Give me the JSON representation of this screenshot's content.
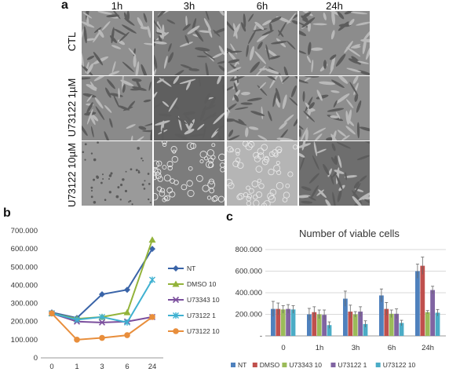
{
  "panel_a": {
    "letter": "a",
    "columns": [
      "1h",
      "3h",
      "6h",
      "24h"
    ],
    "rows": [
      "CTL",
      "U73122 1µM",
      "U73122 10µM"
    ]
  },
  "panel_b": {
    "letter": "b"
  },
  "panel_c": {
    "letter": "c"
  },
  "chart_data": [
    {
      "type": "line",
      "title": "",
      "xlabel": "",
      "ylabel": "",
      "x": [
        "0",
        "1",
        "3",
        "6",
        "24"
      ],
      "y_ticks": [
        "0",
        "100.000",
        "200.000",
        "300.000",
        "400.000",
        "500.000",
        "600.000",
        "700.000"
      ],
      "ylim": [
        0,
        700000
      ],
      "grid": false,
      "legend_position": "right",
      "series": [
        {
          "name": "NT",
          "color": "#3a64a8",
          "marker": "diamond",
          "values": [
            250000,
            220000,
            350000,
            375000,
            600000
          ]
        },
        {
          "name": "DMSO 10",
          "color": "#93b33b",
          "marker": "triangle",
          "values": [
            245000,
            215000,
            225000,
            250000,
            650000
          ]
        },
        {
          "name": "U73343 10",
          "color": "#7b4f9d",
          "marker": "x",
          "values": [
            245000,
            200000,
            195000,
            200000,
            225000
          ]
        },
        {
          "name": "U73122 1",
          "color": "#3fb1d1",
          "marker": "star",
          "values": [
            245000,
            210000,
            225000,
            195000,
            430000
          ]
        },
        {
          "name": "U73122 10",
          "color": "#e88e3c",
          "marker": "circle",
          "values": [
            245000,
            100000,
            110000,
            125000,
            225000
          ]
        }
      ]
    },
    {
      "type": "bar",
      "title": "Number of viable cells",
      "xlabel": "",
      "ylabel": "",
      "categories": [
        "0",
        "1h",
        "3h",
        "6h",
        "24h"
      ],
      "y_ticks": [
        "-",
        "200.000",
        "400.000",
        "600.000",
        "800.000"
      ],
      "ylim": [
        0,
        800000
      ],
      "grid": true,
      "legend_position": "bottom",
      "series": [
        {
          "name": "NT",
          "color": "#4f81bd",
          "values": [
            250000,
            200000,
            345000,
            375000,
            600000
          ],
          "errors": [
            70000,
            55000,
            70000,
            60000,
            65000
          ]
        },
        {
          "name": "DMSO",
          "color": "#c0504d",
          "values": [
            250000,
            220000,
            225000,
            250000,
            650000
          ],
          "errors": [
            55000,
            50000,
            60000,
            60000,
            80000
          ]
        },
        {
          "name": "U73343 10",
          "color": "#9bbb59",
          "values": [
            245000,
            200000,
            200000,
            205000,
            220000
          ],
          "errors": [
            35000,
            40000,
            25000,
            35000,
            15000
          ]
        },
        {
          "name": "U73122 1",
          "color": "#8064a2",
          "values": [
            250000,
            195000,
            225000,
            205000,
            425000
          ],
          "errors": [
            40000,
            45000,
            45000,
            45000,
            35000
          ]
        },
        {
          "name": "U73122 10",
          "color": "#4bacc6",
          "values": [
            245000,
            100000,
            110000,
            120000,
            215000
          ],
          "errors": [
            35000,
            30000,
            30000,
            25000,
            30000
          ]
        }
      ]
    }
  ]
}
